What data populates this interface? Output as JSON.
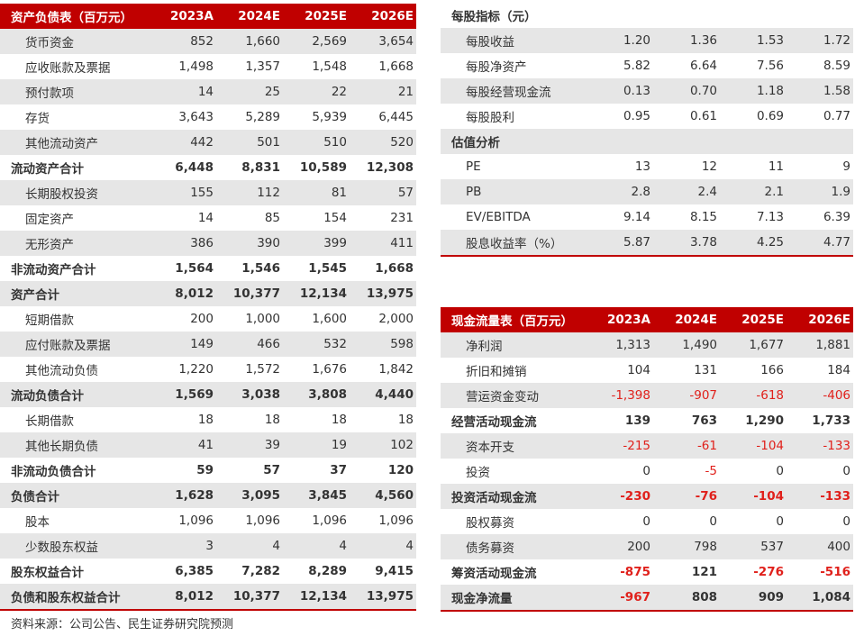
{
  "balance_sheet": {
    "header": [
      "资产负债表（百万元）",
      "2023A",
      "2024E",
      "2025E",
      "2026E"
    ],
    "rows": [
      {
        "label": "货币资金",
        "values": [
          "852",
          "1,660",
          "2,569",
          "3,654"
        ]
      },
      {
        "label": "应收账款及票据",
        "values": [
          "1,498",
          "1,357",
          "1,548",
          "1,668"
        ]
      },
      {
        "label": "预付款项",
        "values": [
          "14",
          "25",
          "22",
          "21"
        ]
      },
      {
        "label": "存货",
        "values": [
          "3,643",
          "5,289",
          "5,939",
          "6,445"
        ]
      },
      {
        "label": "其他流动资产",
        "values": [
          "442",
          "501",
          "510",
          "520"
        ]
      },
      {
        "label": "流动资产合计",
        "total": true,
        "values": [
          "6,448",
          "8,831",
          "10,589",
          "12,308"
        ]
      },
      {
        "label": "长期股权投资",
        "values": [
          "155",
          "112",
          "81",
          "57"
        ]
      },
      {
        "label": "固定资产",
        "values": [
          "14",
          "85",
          "154",
          "231"
        ]
      },
      {
        "label": "无形资产",
        "values": [
          "386",
          "390",
          "399",
          "411"
        ]
      },
      {
        "label": "非流动资产合计",
        "total": true,
        "values": [
          "1,564",
          "1,546",
          "1,545",
          "1,668"
        ]
      },
      {
        "label": "资产合计",
        "total": true,
        "values": [
          "8,012",
          "10,377",
          "12,134",
          "13,975"
        ]
      },
      {
        "label": "短期借款",
        "values": [
          "200",
          "1,000",
          "1,600",
          "2,000"
        ]
      },
      {
        "label": "应付账款及票据",
        "values": [
          "149",
          "466",
          "532",
          "598"
        ]
      },
      {
        "label": "其他流动负债",
        "values": [
          "1,220",
          "1,572",
          "1,676",
          "1,842"
        ]
      },
      {
        "label": "流动负债合计",
        "total": true,
        "values": [
          "1,569",
          "3,038",
          "3,808",
          "4,440"
        ]
      },
      {
        "label": "长期借款",
        "values": [
          "18",
          "18",
          "18",
          "18"
        ]
      },
      {
        "label": "其他长期负债",
        "values": [
          "41",
          "39",
          "19",
          "102"
        ]
      },
      {
        "label": "非流动负债合计",
        "total": true,
        "values": [
          "59",
          "57",
          "37",
          "120"
        ]
      },
      {
        "label": "负债合计",
        "total": true,
        "values": [
          "1,628",
          "3,095",
          "3,845",
          "4,560"
        ]
      },
      {
        "label": "股本",
        "values": [
          "1,096",
          "1,096",
          "1,096",
          "1,096"
        ]
      },
      {
        "label": "少数股东权益",
        "values": [
          "3",
          "4",
          "4",
          "4"
        ]
      },
      {
        "label": "股东权益合计",
        "total": true,
        "values": [
          "6,385",
          "7,282",
          "8,289",
          "9,415"
        ]
      },
      {
        "label": "负债和股东权益合计",
        "total": true,
        "values": [
          "8,012",
          "10,377",
          "12,134",
          "13,975"
        ]
      }
    ]
  },
  "per_share": {
    "rows": [
      {
        "label": "每股指标（元）",
        "total": true
      },
      {
        "label": "每股收益",
        "values": [
          "1.20",
          "1.36",
          "1.53",
          "1.72"
        ]
      },
      {
        "label": "每股净资产",
        "values": [
          "5.82",
          "6.64",
          "7.56",
          "8.59"
        ]
      },
      {
        "label": "每股经营现金流",
        "values": [
          "0.13",
          "0.70",
          "1.18",
          "1.58"
        ]
      },
      {
        "label": "每股股利",
        "values": [
          "0.95",
          "0.61",
          "0.69",
          "0.77"
        ]
      },
      {
        "label": "估值分析",
        "total": true
      },
      {
        "label": "PE",
        "values": [
          "13",
          "12",
          "11",
          "9"
        ]
      },
      {
        "label": "PB",
        "values": [
          "2.8",
          "2.4",
          "2.1",
          "1.9"
        ]
      },
      {
        "label": "EV/EBITDA",
        "values": [
          "9.14",
          "8.15",
          "7.13",
          "6.39"
        ]
      },
      {
        "label": "股息收益率（%）",
        "values": [
          "5.87",
          "3.78",
          "4.25",
          "4.77"
        ]
      }
    ]
  },
  "cash_flow": {
    "header": [
      "现金流量表（百万元）",
      "2023A",
      "2024E",
      "2025E",
      "2026E"
    ],
    "rows": [
      {
        "label": "净利润",
        "values": [
          "1,313",
          "1,490",
          "1,677",
          "1,881"
        ]
      },
      {
        "label": "折旧和摊销",
        "values": [
          "104",
          "131",
          "166",
          "184"
        ]
      },
      {
        "label": "营运资金变动",
        "values": [
          "-1,398",
          "-907",
          "-618",
          "-406"
        ]
      },
      {
        "label": "经营活动现金流",
        "total": true,
        "values": [
          "139",
          "763",
          "1,290",
          "1,733"
        ]
      },
      {
        "label": "资本开支",
        "values": [
          "-215",
          "-61",
          "-104",
          "-133"
        ]
      },
      {
        "label": "投资",
        "values": [
          "0",
          "-5",
          "0",
          "0"
        ]
      },
      {
        "label": "投资活动现金流",
        "total": true,
        "values": [
          "-230",
          "-76",
          "-104",
          "-133"
        ]
      },
      {
        "label": "股权募资",
        "values": [
          "0",
          "0",
          "0",
          "0"
        ]
      },
      {
        "label": "债务募资",
        "values": [
          "200",
          "798",
          "537",
          "400"
        ]
      },
      {
        "label": "筹资活动现金流",
        "total": true,
        "values": [
          "-875",
          "121",
          "-276",
          "-516"
        ]
      },
      {
        "label": "现金净流量",
        "total": true,
        "values": [
          "-967",
          "808",
          "909",
          "1,084"
        ]
      }
    ]
  },
  "source": "资料来源：公司公告、民生证券研究院预测"
}
